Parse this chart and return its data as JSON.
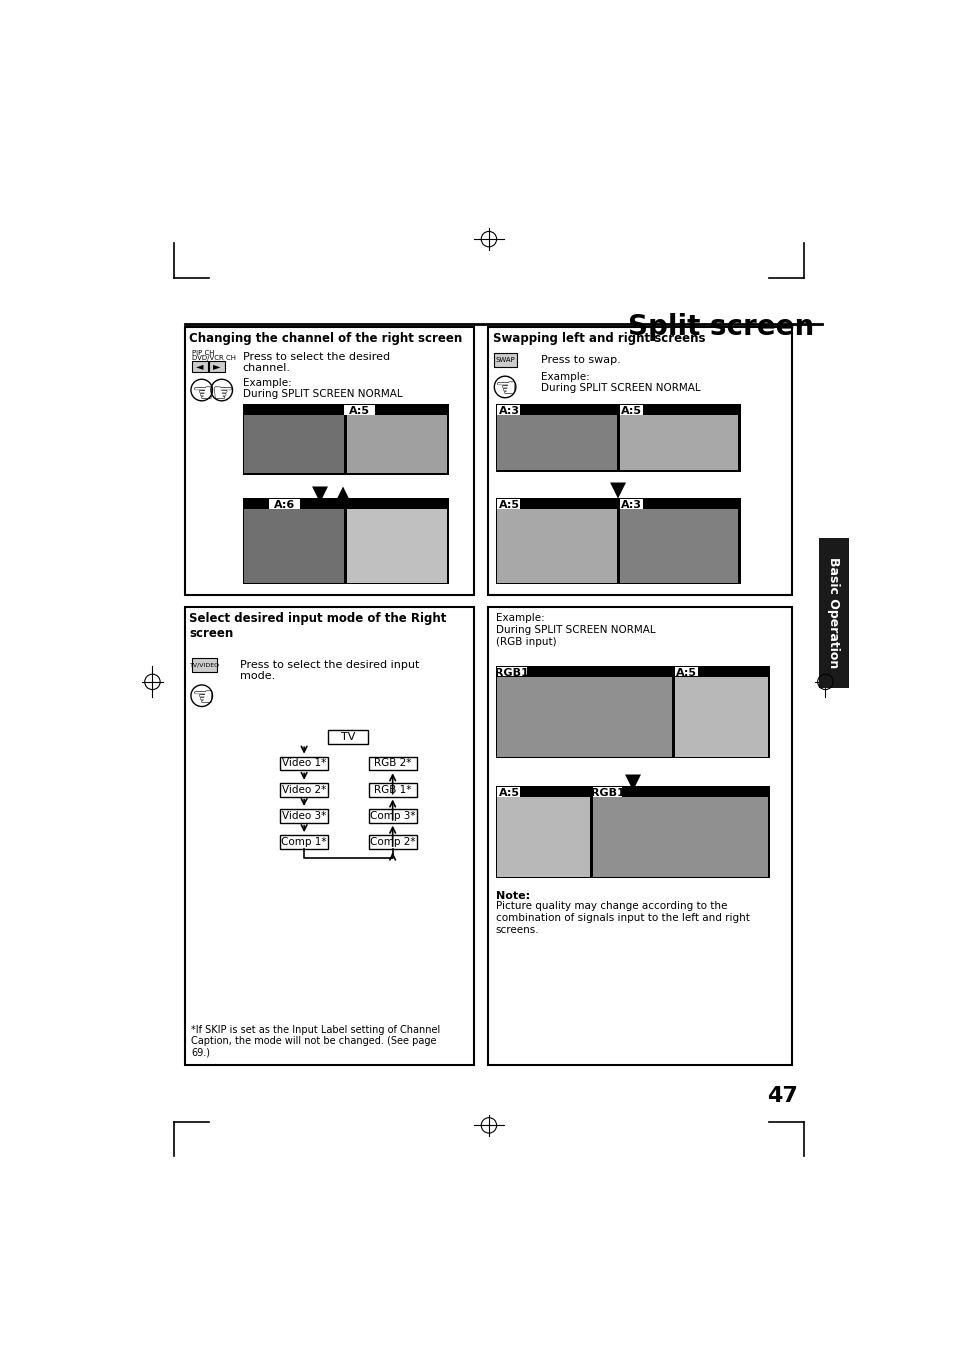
{
  "page_bg": "#ffffff",
  "title": "Split screen",
  "page_number": "47",
  "left_box1_title": "Changing the channel of the right screen",
  "left_box1_text": "Press to select the desired\nchannel.",
  "left_box1_example": "Example:\nDuring SPLIT SCREEN NORMAL",
  "label_a5_1": "A:5",
  "label_a6": "A:6",
  "right_box1_title": "Swapping left and right screens",
  "right_box1_text": "Press to swap.",
  "right_box1_example": "Example:\nDuring SPLIT SCREEN NORMAL",
  "label_a3_1": "A:3",
  "label_a5_2": "A:5",
  "label_a5_3": "A:5",
  "label_a3_2": "A:3",
  "right_box2_example": "Example:\nDuring SPLIT SCREEN NORMAL\n(RGB input)",
  "label_rgb1_1": "RGB1",
  "label_a5_4": "A:5",
  "label_a5_5": "A:5",
  "label_rgb1_2": "RGB1",
  "left_box2_title": "Select desired input mode of the Right\nscreen",
  "left_box2_text": "Press to select the desired input\nmode.",
  "footnote": "*If SKIP is set as the Input Label setting of Channel\nCaption, the mode will not be changed. (See page\n69.)",
  "note_title": "Note:",
  "note_text": "Picture quality may change according to the\ncombination of signals input to the left and right\nscreens.",
  "basic_op_label": "Basic Operation",
  "tab_bg": "#1a1a1a",
  "tab_text_color": "#ffffff",
  "pip_label": "PIP CH\nDVD/VCR CH",
  "swap_label": "SWAP",
  "tvvideo_label": "TV/VIDEO"
}
